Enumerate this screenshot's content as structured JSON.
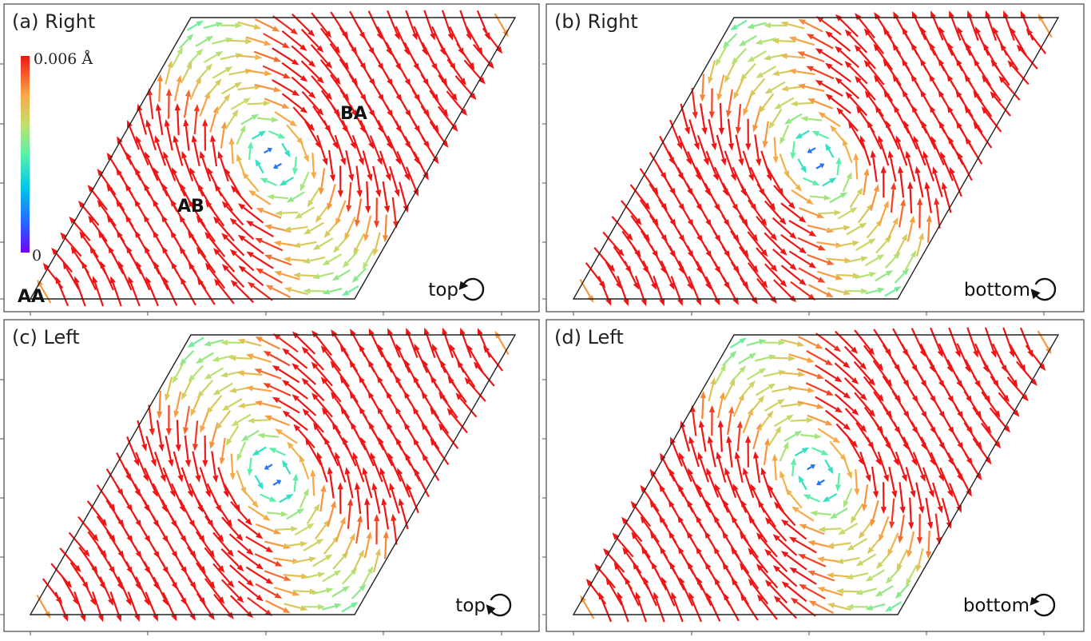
{
  "chart_data": [
    {
      "type": "quiver",
      "title": "(a) Right",
      "side": "top",
      "rotation": "counterclockwise",
      "region_labels": [
        "AA",
        "AB",
        "BA"
      ],
      "colorbar": {
        "min_label": "0",
        "max_label": "0.006 Å",
        "min": 0,
        "max": 0.006,
        "colormap": "rainbow"
      },
      "vortices": [
        {
          "x": 0.0,
          "y": 0.0,
          "sense": "ccw"
        },
        {
          "x": 0.5,
          "y": 0.5,
          "sense": "cw"
        },
        {
          "x": 1.0,
          "y": 1.0,
          "sense": "ccw"
        }
      ]
    },
    {
      "type": "quiver",
      "title": "(b) Right",
      "side": "bottom",
      "rotation": "clockwise",
      "vortices": [
        {
          "x": 0.0,
          "y": 0.0,
          "sense": "cw"
        },
        {
          "x": 0.5,
          "y": 0.5,
          "sense": "ccw"
        },
        {
          "x": 1.0,
          "y": 1.0,
          "sense": "cw"
        }
      ]
    },
    {
      "type": "quiver",
      "title": "(c) Left",
      "side": "top",
      "rotation": "clockwise",
      "vortices": [
        {
          "x": 0.0,
          "y": 0.0,
          "sense": "cw"
        },
        {
          "x": 0.5,
          "y": 0.5,
          "sense": "ccw"
        },
        {
          "x": 1.0,
          "y": 1.0,
          "sense": "cw"
        }
      ]
    },
    {
      "type": "quiver",
      "title": "(d) Left",
      "side": "bottom",
      "rotation": "counterclockwise",
      "vortices": [
        {
          "x": 0.0,
          "y": 0.0,
          "sense": "ccw"
        },
        {
          "x": 0.5,
          "y": 0.5,
          "sense": "cw"
        },
        {
          "x": 1.0,
          "y": 1.0,
          "sense": "ccw"
        }
      ]
    }
  ]
}
